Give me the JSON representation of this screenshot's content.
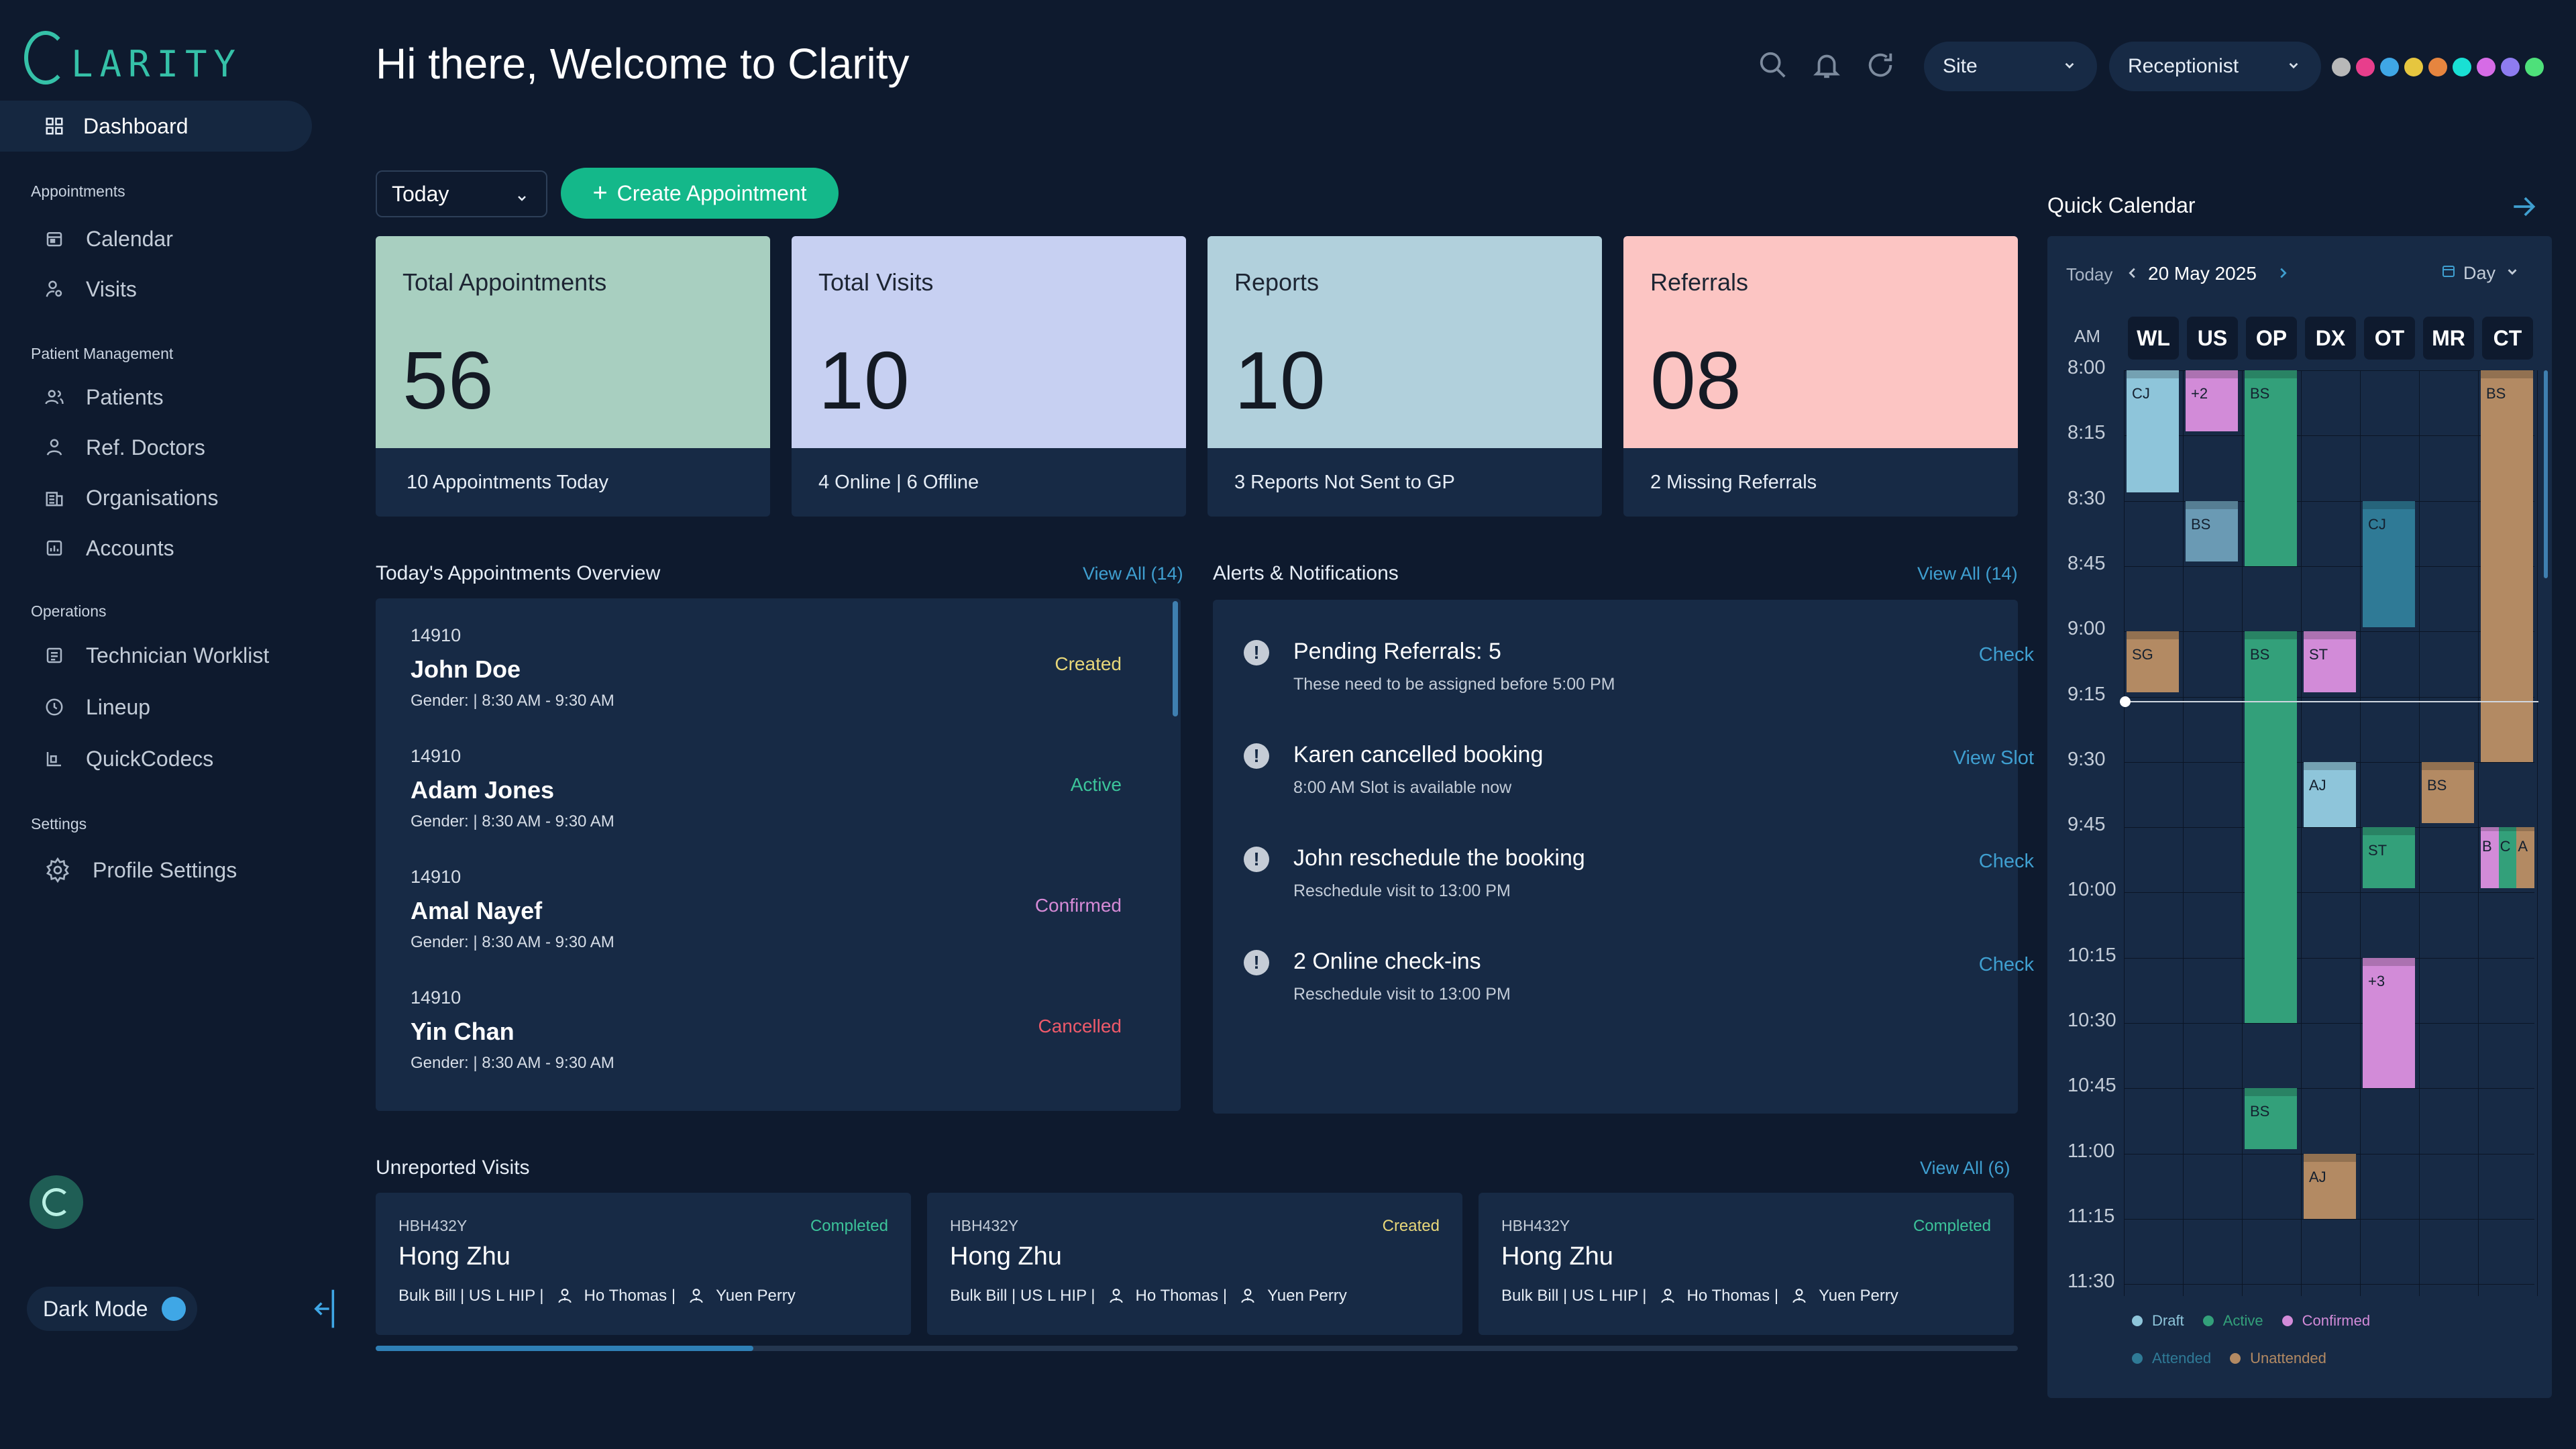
{
  "app": {
    "logo_text": "LARITY",
    "welcome": "Hi there, Welcome to Clarity"
  },
  "sidebar": {
    "dashboard_label": "Dashboard",
    "sections": [
      {
        "title": "Appointments",
        "items": [
          "Calendar",
          "Visits"
        ]
      },
      {
        "title": "Patient Management",
        "items": [
          "Patients",
          "Ref. Doctors",
          "Organisations",
          "Accounts"
        ]
      },
      {
        "title": "Operations",
        "items": [
          "Technician Worklist",
          "Lineup",
          "QuickCodecs"
        ]
      },
      {
        "title": "Settings",
        "items": [
          "Profile Settings"
        ]
      }
    ],
    "dark_mode_label": "Dark Mode"
  },
  "header": {
    "site_select": "Site",
    "role_select": "Receptionist",
    "theme_dots": [
      "#b8b8b8",
      "#e83e8c",
      "#3fa7e6",
      "#e6c63f",
      "#e6853f",
      "#19e0d4",
      "#d66be6",
      "#8e7cf0",
      "#4ee07a"
    ]
  },
  "controls": {
    "period": "Today",
    "create_label": "Create Appointment"
  },
  "stats": [
    {
      "title": "Total Appointments",
      "value": "56",
      "footer": "10 Appointments Today",
      "color": "#a8cfc0"
    },
    {
      "title": "Total Visits",
      "value": "10",
      "footer": "4 Online |  6 Offline",
      "color": "#c7d0f2"
    },
    {
      "title": "Reports",
      "value": "10",
      "footer": "3 Reports Not Sent to GP",
      "color": "#b1d0dc"
    },
    {
      "title": "Referrals",
      "value": "08",
      "footer": "2 Missing Referrals",
      "color": "#fcc5c3"
    }
  ],
  "overview": {
    "title": "Today's Appointments Overview",
    "view_all": "View All (14)",
    "items": [
      {
        "id": "14910",
        "name": "John Doe",
        "meta": "Gender:  | 8:30 AM - 9:30 AM",
        "status": "Created",
        "status_color": "#e8d77a"
      },
      {
        "id": "14910",
        "name": "Adam Jones",
        "meta": "Gender:  | 8:30 AM - 9:30 AM",
        "status": "Active",
        "status_color": "#3cc49a"
      },
      {
        "id": "14910",
        "name": "Amal Nayef",
        "meta": "Gender:  | 8:30 AM - 9:30 AM",
        "status": "Confirmed",
        "status_color": "#d68ad6"
      },
      {
        "id": "14910",
        "name": "Yin Chan",
        "meta": "Gender:  | 8:30 AM - 9:30 AM",
        "status": "Cancelled",
        "status_color": "#ef5a6a"
      }
    ]
  },
  "alerts": {
    "title": "Alerts & Notifications",
    "view_all": "View All (14)",
    "items": [
      {
        "title": "Pending Referrals: 5",
        "sub": "These need to be assigned before 5:00 PM",
        "action": "Check"
      },
      {
        "title": "Karen cancelled booking",
        "sub": "8:00 AM Slot is available now",
        "action": "View Slot"
      },
      {
        "title": "John reschedule the booking",
        "sub": "Reschedule visit to 13:00 PM",
        "action": "Check"
      },
      {
        "title": "2 Online check-ins",
        "sub": "Reschedule visit to 13:00 PM",
        "action": "Check"
      }
    ]
  },
  "unreported": {
    "title": "Unreported Visits",
    "view_all": "View All (6)",
    "progress": 0.23,
    "items": [
      {
        "id": "HBH432Y",
        "status": "Completed",
        "status_color": "#3cc49a",
        "name": "Hong Zhu",
        "bill": "Bulk Bill | US L HIP |",
        "p1": "Ho Thomas |",
        "p2": "Yuen Perry"
      },
      {
        "id": "HBH432Y",
        "status": "Created",
        "status_color": "#e8d77a",
        "name": "Hong Zhu",
        "bill": "Bulk Bill | US L HIP |",
        "p1": "Ho Thomas |",
        "p2": "Yuen Perry"
      },
      {
        "id": "HBH432Y",
        "status": "Completed",
        "status_color": "#3cc49a",
        "name": "Hong Zhu",
        "bill": "Bulk Bill | US L HIP |",
        "p1": "Ho Thomas |",
        "p2": "Yuen Perry"
      }
    ]
  },
  "calendar": {
    "title": "Quick Calendar",
    "today": "Today",
    "date": "20 May 2025",
    "view": "Day",
    "ampm": "AM",
    "resources": [
      "WL",
      "US",
      "OP",
      "DX",
      "OT",
      "MR",
      "CT"
    ],
    "times": [
      "8:00",
      "8:15",
      "8:30",
      "8:45",
      "9:00",
      "9:15",
      "9:30",
      "9:45",
      "10:00",
      "10:15",
      "10:30",
      "10:45",
      "11:00",
      "11:15",
      "11:30"
    ],
    "now": "9:16",
    "events": [
      {
        "label": "CJ",
        "col": 0,
        "start": "8:00",
        "end": "8:28",
        "color": "#8ec5da"
      },
      {
        "label": "+2",
        "col": 1,
        "start": "8:00",
        "end": "8:14",
        "color": "#d28bd8"
      },
      {
        "label": "BS",
        "col": 1,
        "start": "8:30",
        "end": "8:44",
        "color": "#6a9ab4"
      },
      {
        "label": "BS",
        "col": 2,
        "start": "8:00",
        "end": "8:45",
        "color": "#33a07a"
      },
      {
        "label": "CJ",
        "col": 4,
        "start": "8:30",
        "end": "8:59",
        "color": "#2f7a96"
      },
      {
        "label": "BS",
        "col": 6,
        "start": "8:00",
        "end": "9:30",
        "color": "#b38a63"
      },
      {
        "label": "SG",
        "col": 0,
        "start": "9:00",
        "end": "9:14",
        "color": "#b38a63"
      },
      {
        "label": "BS",
        "col": 2,
        "start": "9:00",
        "end": "10:30",
        "color": "#33a07a"
      },
      {
        "label": "ST",
        "col": 3,
        "start": "9:00",
        "end": "9:14",
        "color": "#d28bd8"
      },
      {
        "label": "AJ",
        "col": 3,
        "start": "9:30",
        "end": "9:45",
        "color": "#8ec5da"
      },
      {
        "label": "BS",
        "col": 5,
        "start": "9:30",
        "end": "9:44",
        "color": "#b38a63"
      },
      {
        "label": "ST",
        "col": 4,
        "start": "9:45",
        "end": "9:59",
        "color": "#33a07a"
      },
      {
        "label": "B",
        "col": 6,
        "start": "9:45",
        "end": "9:59",
        "color": "#d28bd8",
        "sub": 0
      },
      {
        "label": "C",
        "col": 6,
        "start": "9:45",
        "end": "9:59",
        "color": "#33a07a",
        "sub": 1
      },
      {
        "label": "A",
        "col": 6,
        "start": "9:45",
        "end": "9:59",
        "color": "#b38a63",
        "sub": 2
      },
      {
        "label": "+3",
        "col": 4,
        "start": "10:15",
        "end": "10:45",
        "color": "#d28bd8"
      },
      {
        "label": "BS",
        "col": 2,
        "start": "10:45",
        "end": "10:59",
        "color": "#33a07a"
      },
      {
        "label": "AJ",
        "col": 3,
        "start": "11:00",
        "end": "11:15",
        "color": "#b38a63"
      }
    ],
    "legend": [
      {
        "label": "Draft",
        "color": "#8ec5da"
      },
      {
        "label": "Active",
        "color": "#33a07a"
      },
      {
        "label": "Confirmed",
        "color": "#d28bd8"
      },
      {
        "label": "Attended",
        "color": "#2f7a96"
      },
      {
        "label": "Unattended",
        "color": "#b38a63"
      }
    ]
  }
}
